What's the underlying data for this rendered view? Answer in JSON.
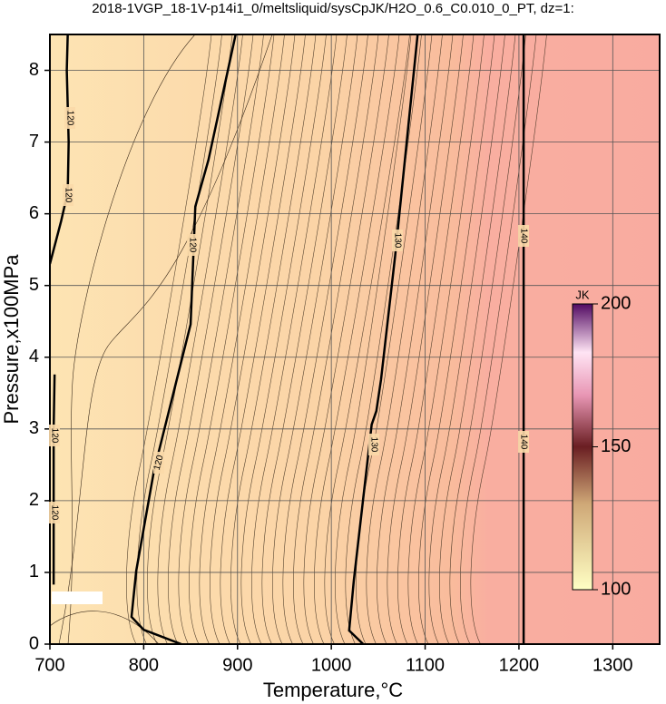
{
  "chart_data": {
    "type": "contour",
    "title": "2018-1VGP_18-1V-p14i1_0/meltsliquid/sysCpJK/H2O_0.6_C0.010_0_PT, dz=1:",
    "x_label": "Temperature,°C",
    "y_label": "Pressure,x100MPa",
    "xlim": [
      700,
      1350
    ],
    "ylim": [
      0,
      8.5
    ],
    "xticks": [
      700,
      800,
      900,
      1000,
      1100,
      1200,
      1300
    ],
    "yticks": [
      0,
      1,
      2,
      3,
      4,
      5,
      6,
      7,
      8
    ],
    "grid": true,
    "colorbar": {
      "label": "JK",
      "lim": [
        100,
        200
      ],
      "ticks": [
        100,
        150,
        200
      ]
    },
    "contours": [
      {
        "level": 120,
        "x": [
          840,
          800,
          787,
          792,
          811,
          850,
          855,
          869,
          898
        ],
        "y": [
          0,
          0.2,
          0.38,
          1.02,
          2.42,
          4.46,
          6.1,
          6.75,
          8.5
        ]
      },
      {
        "level": 120,
        "x": [
          700,
          712,
          719,
          720,
          718,
          719
        ],
        "y": [
          5.3,
          5.9,
          6.3,
          7,
          8,
          8.5
        ]
      },
      {
        "level": 120,
        "x": [
          705,
          704,
          704,
          704
        ],
        "y": [
          3.76,
          3,
          2,
          0.83
        ]
      },
      {
        "level": 130,
        "x": [
          1034,
          1019,
          1024,
          1043,
          1048,
          1053,
          1068,
          1092
        ],
        "y": [
          0,
          0.19,
          0.89,
          3.06,
          3.25,
          3.69,
          5.41,
          8.5
        ]
      },
      {
        "level": 140,
        "x": [
          1205,
          1205
        ],
        "y": [
          0,
          8.5
        ]
      }
    ]
  }
}
